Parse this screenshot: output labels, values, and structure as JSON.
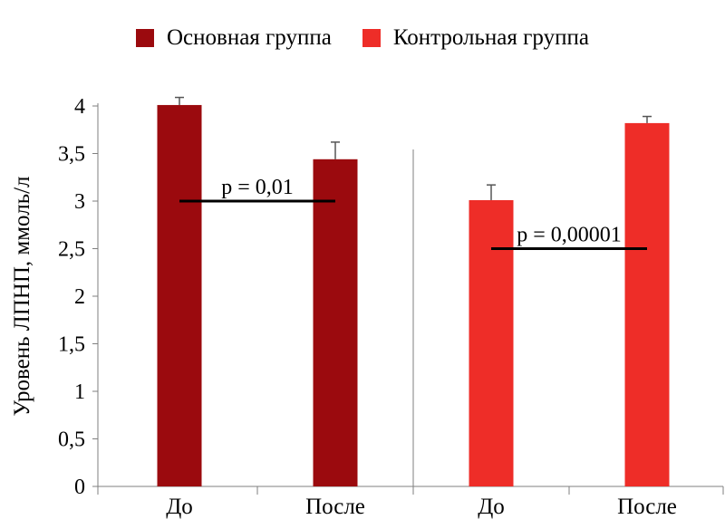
{
  "chart_data": {
    "type": "bar",
    "ylabel": "Уровень ЛПНП, ммоль/л",
    "ylim": [
      0,
      4
    ],
    "yticks": [
      0,
      0.5,
      1,
      1.5,
      2,
      2.5,
      3,
      3.5,
      4
    ],
    "ytick_labels": [
      "0",
      "0,5",
      "1",
      "1,5",
      "2",
      "2,5",
      "3",
      "3,5",
      "4"
    ],
    "categories": [
      "До",
      "После",
      "До",
      "После"
    ],
    "legend_position": "top",
    "grid": false,
    "series": [
      {
        "name": "Основная группа",
        "color": "#9b0a0e",
        "bars": [
          {
            "category_index": 0,
            "value": 4.01,
            "error": 0.08
          },
          {
            "category_index": 1,
            "value": 3.44,
            "error": 0.18
          }
        ]
      },
      {
        "name": "Контрольная группа",
        "color": "#ee2d28",
        "bars": [
          {
            "category_index": 2,
            "value": 3.01,
            "error": 0.16
          },
          {
            "category_index": 3,
            "value": 3.82,
            "error": 0.07
          }
        ]
      }
    ],
    "annotations": [
      {
        "text": "p = 0,01",
        "y": 3.0,
        "from_category": 0,
        "to_category": 1
      },
      {
        "text": "p = 0,00001",
        "y": 2.5,
        "from_category": 2,
        "to_category": 3
      }
    ]
  }
}
